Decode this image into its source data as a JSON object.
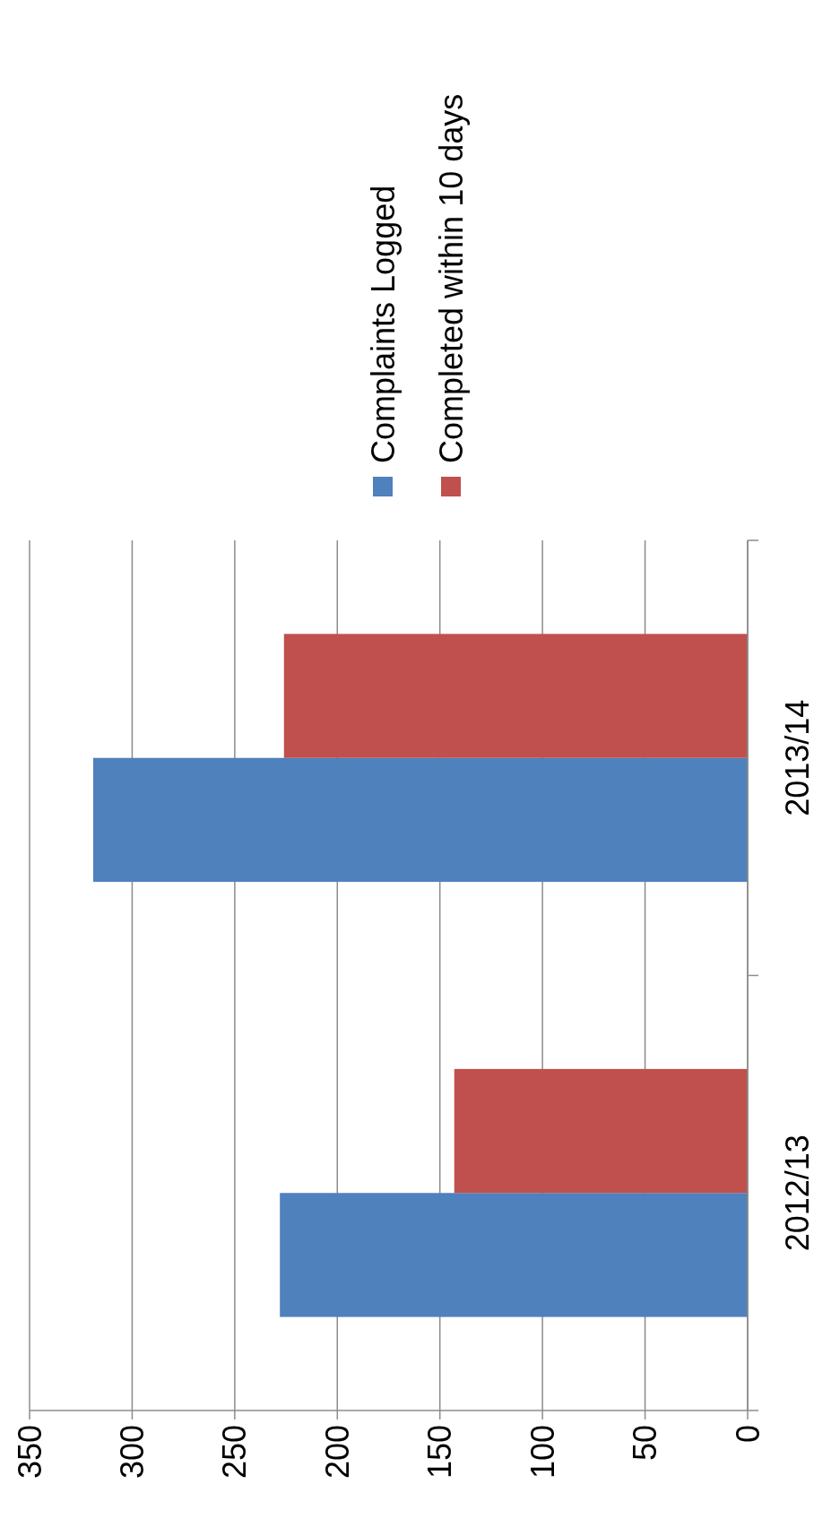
{
  "chart_data": {
    "type": "bar",
    "orientation": "horizontal",
    "categories": [
      "2013/14",
      "2012/13"
    ],
    "series": [
      {
        "name": "Complaints Logged",
        "color": "#4f81bd",
        "values": [
          319,
          228
        ]
      },
      {
        "name": "Completed within 10 days",
        "color": "#c0504d",
        "values": [
          226,
          143
        ]
      }
    ],
    "xlim": [
      350,
      0
    ],
    "xticks": [
      350,
      300,
      250,
      200,
      150,
      100,
      50,
      0
    ],
    "grid": "x",
    "legend": "top right"
  }
}
